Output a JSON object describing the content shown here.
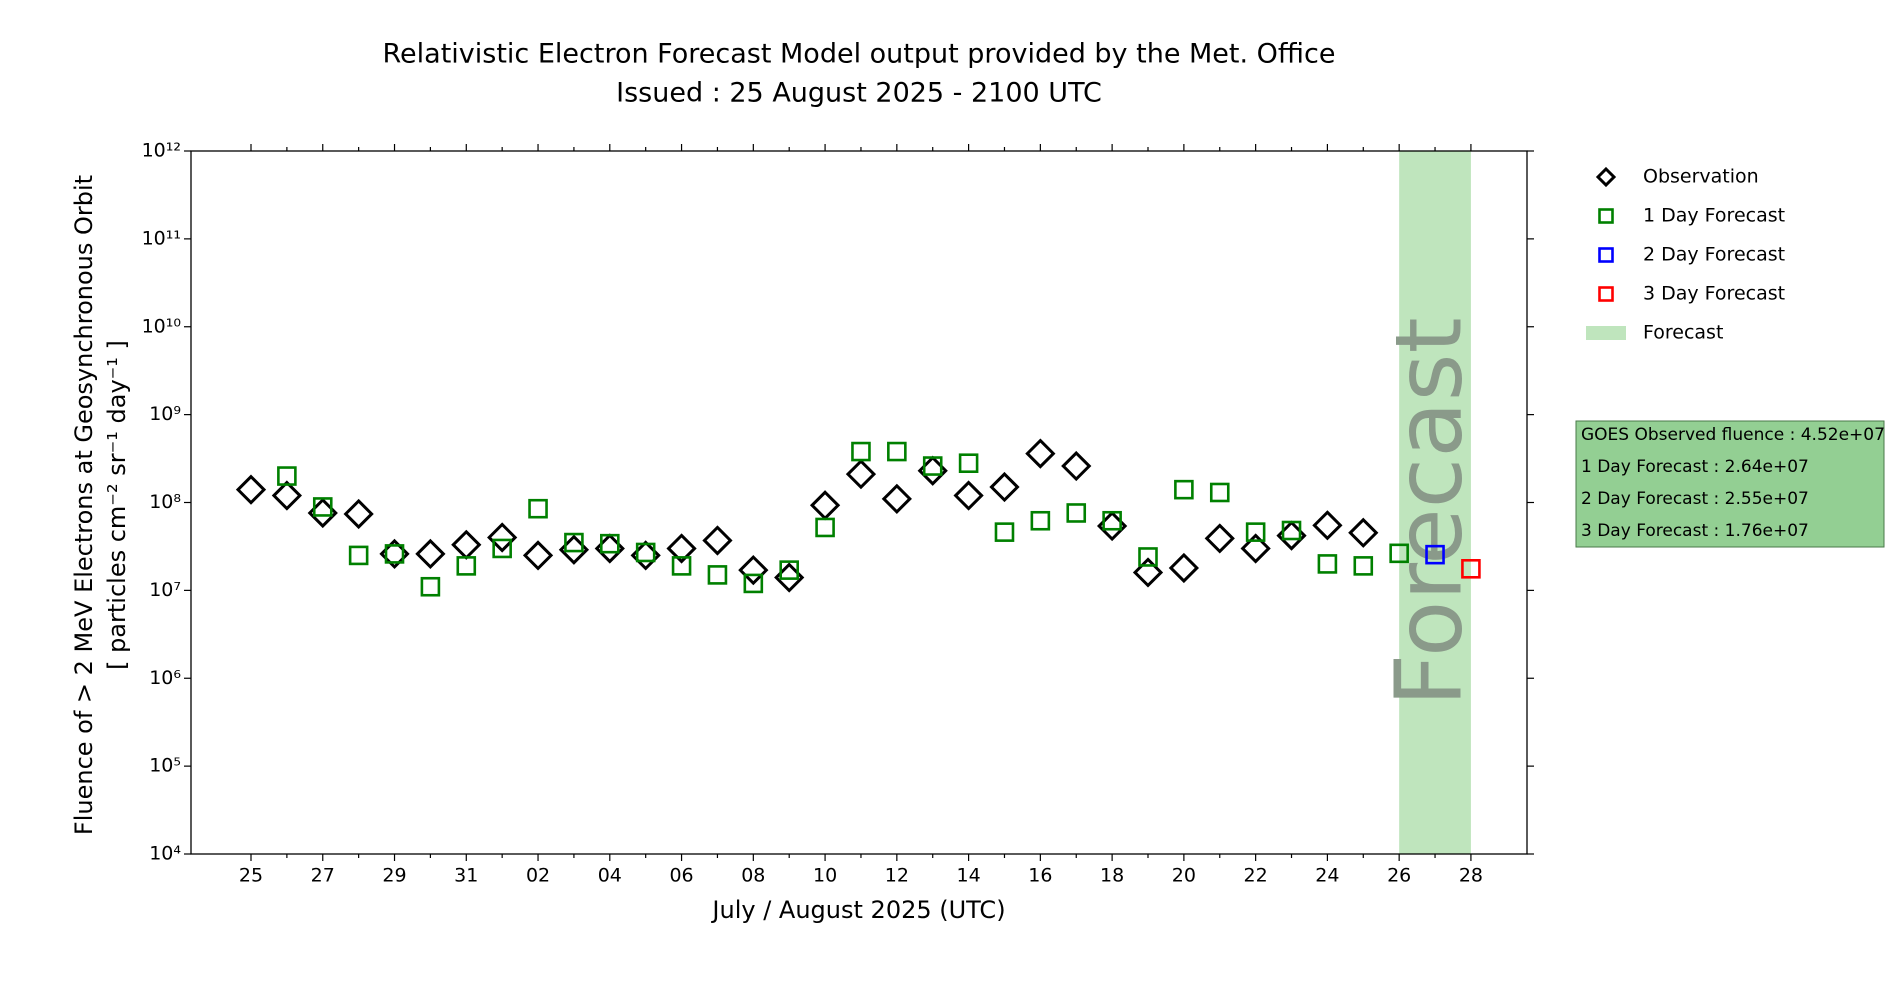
{
  "chart_data": {
    "type": "scatter",
    "title": "Relativistic Electron Forecast Model output provided by the Met. Office",
    "subtitle": "Issued : 25 August 2025 - 2100 UTC",
    "x_label": "July / August 2025 (UTC)",
    "y_label": [
      "Fluence of > 2 MeV Electrons at Geosynchronous Orbit",
      "[ particles cm⁻² sr⁻¹ day⁻¹ ]"
    ],
    "log_scale": true,
    "categories": [
      "25",
      null,
      "27",
      null,
      "29",
      null,
      "31",
      null,
      "02",
      null,
      "04",
      null,
      "06",
      null,
      "08",
      null,
      "10",
      null,
      "12",
      null,
      "14",
      null,
      "16",
      null,
      "18",
      null,
      "20",
      null,
      "22",
      null,
      "24",
      null,
      "26",
      null,
      "28"
    ],
    "ylim": [
      10000.0,
      1000000000000.0
    ],
    "yticks": [
      {
        "value": 10000.0,
        "label": "10⁴"
      },
      {
        "value": 100000.0,
        "label": "10⁵"
      },
      {
        "value": 1000000.0,
        "label": "10⁶"
      },
      {
        "value": 10000000.0,
        "label": "10⁷"
      },
      {
        "value": 100000000.0,
        "label": "10⁸"
      },
      {
        "value": 1000000000.0,
        "label": "10⁹"
      },
      {
        "value": 10000000000.0,
        "label": "10¹⁰"
      },
      {
        "value": 100000000000.0,
        "label": "10¹¹"
      },
      {
        "value": 1000000000000.0,
        "label": "10¹²"
      }
    ],
    "series": [
      {
        "name": "Observation",
        "color": "#000000",
        "marker": "diamond",
        "values": [
          140000000.0,
          120000000.0,
          76000000.0,
          74000000.0,
          26000000.0,
          26000000.0,
          33000000.0,
          40000000.0,
          25000000.0,
          29000000.0,
          30000000.0,
          25000000.0,
          30000000.0,
          37000000.0,
          17000000.0,
          14000000.0,
          93000000.0,
          210000000.0,
          110000000.0,
          230000000.0,
          120000000.0,
          150000000.0,
          360000000.0,
          260000000.0,
          54000000.0,
          16000000.0,
          18000000.0,
          39000000.0,
          30000000.0,
          42000000.0,
          55000000.0,
          45200000.0,
          null,
          null,
          null
        ]
      },
      {
        "name": "1 Day Forecast",
        "color": "#008000",
        "marker": "square",
        "values": [
          null,
          200000000.0,
          89000000.0,
          25000000.0,
          26000000.0,
          11000000.0,
          19000000.0,
          30000000.0,
          85000000.0,
          35000000.0,
          34000000.0,
          27000000.0,
          19000000.0,
          15000000.0,
          12000000.0,
          17000000.0,
          52000000.0,
          380000000.0,
          380000000.0,
          260000000.0,
          280000000.0,
          46000000.0,
          62000000.0,
          76000000.0,
          62000000.0,
          24000000.0,
          140000000.0,
          130000000.0,
          46000000.0,
          48000000.0,
          20000000.0,
          19000000.0,
          26400000.0,
          null,
          null
        ]
      },
      {
        "name": "2 Day Forecast",
        "color": "#0000ff",
        "marker": "square",
        "values": [
          null,
          null,
          null,
          null,
          null,
          null,
          null,
          null,
          null,
          null,
          null,
          null,
          null,
          null,
          null,
          null,
          null,
          null,
          null,
          null,
          null,
          null,
          null,
          null,
          null,
          null,
          null,
          null,
          null,
          null,
          null,
          null,
          null,
          25500000.0,
          null
        ]
      },
      {
        "name": "3 Day Forecast",
        "color": "#ff0000",
        "marker": "square",
        "values": [
          null,
          null,
          null,
          null,
          null,
          null,
          null,
          null,
          null,
          null,
          null,
          null,
          null,
          null,
          null,
          null,
          null,
          null,
          null,
          null,
          null,
          null,
          null,
          null,
          null,
          null,
          null,
          null,
          null,
          null,
          null,
          null,
          null,
          null,
          17600000.0
        ]
      }
    ],
    "band": {
      "name": "Forecast",
      "color": "#bfe5bd",
      "start": "26",
      "end": "28"
    },
    "info_box": {
      "color": "#93cf93",
      "lines": [
        "GOES Observed fluence : 4.52e+07",
        "1 Day Forecast : 2.64e+07",
        "2 Day Forecast : 2.55e+07",
        "3 Day Forecast : 1.76e+07"
      ]
    }
  }
}
